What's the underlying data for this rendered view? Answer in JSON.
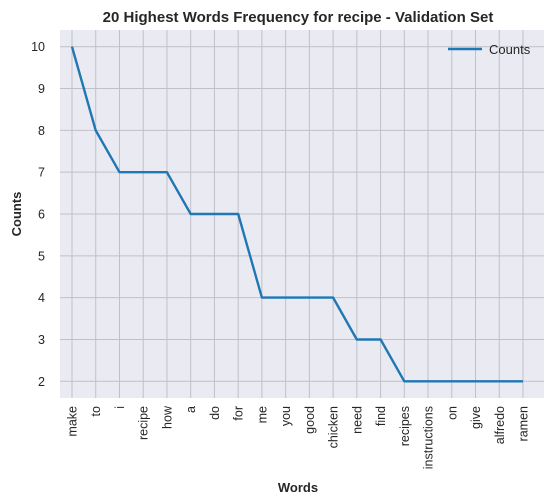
{
  "chart_data": {
    "type": "line",
    "title": "20 Highest Words Frequency for recipe - Validation Set",
    "xlabel": "Words",
    "ylabel": "Counts",
    "categories": [
      "make",
      "to",
      "i",
      "recipe",
      "how",
      "a",
      "do",
      "for",
      "me",
      "you",
      "good",
      "chicken",
      "need",
      "find",
      "recipes",
      "instructions",
      "on",
      "give",
      "alfredo",
      "ramen"
    ],
    "series": [
      {
        "name": "Counts",
        "values": [
          10,
          8,
          7,
          7,
          7,
          6,
          6,
          6,
          4,
          4,
          4,
          4,
          3,
          3,
          2,
          2,
          2,
          2,
          2,
          2
        ]
      }
    ],
    "yticks": [
      2,
      3,
      4,
      5,
      6,
      7,
      8,
      9,
      10
    ],
    "ylim": [
      1.6,
      10.4
    ],
    "grid": true,
    "legend": "top-right",
    "colors": {
      "line": "#1f77b4",
      "plot_bg": "#eaeaf2",
      "grid": "#c0c0c8"
    }
  }
}
